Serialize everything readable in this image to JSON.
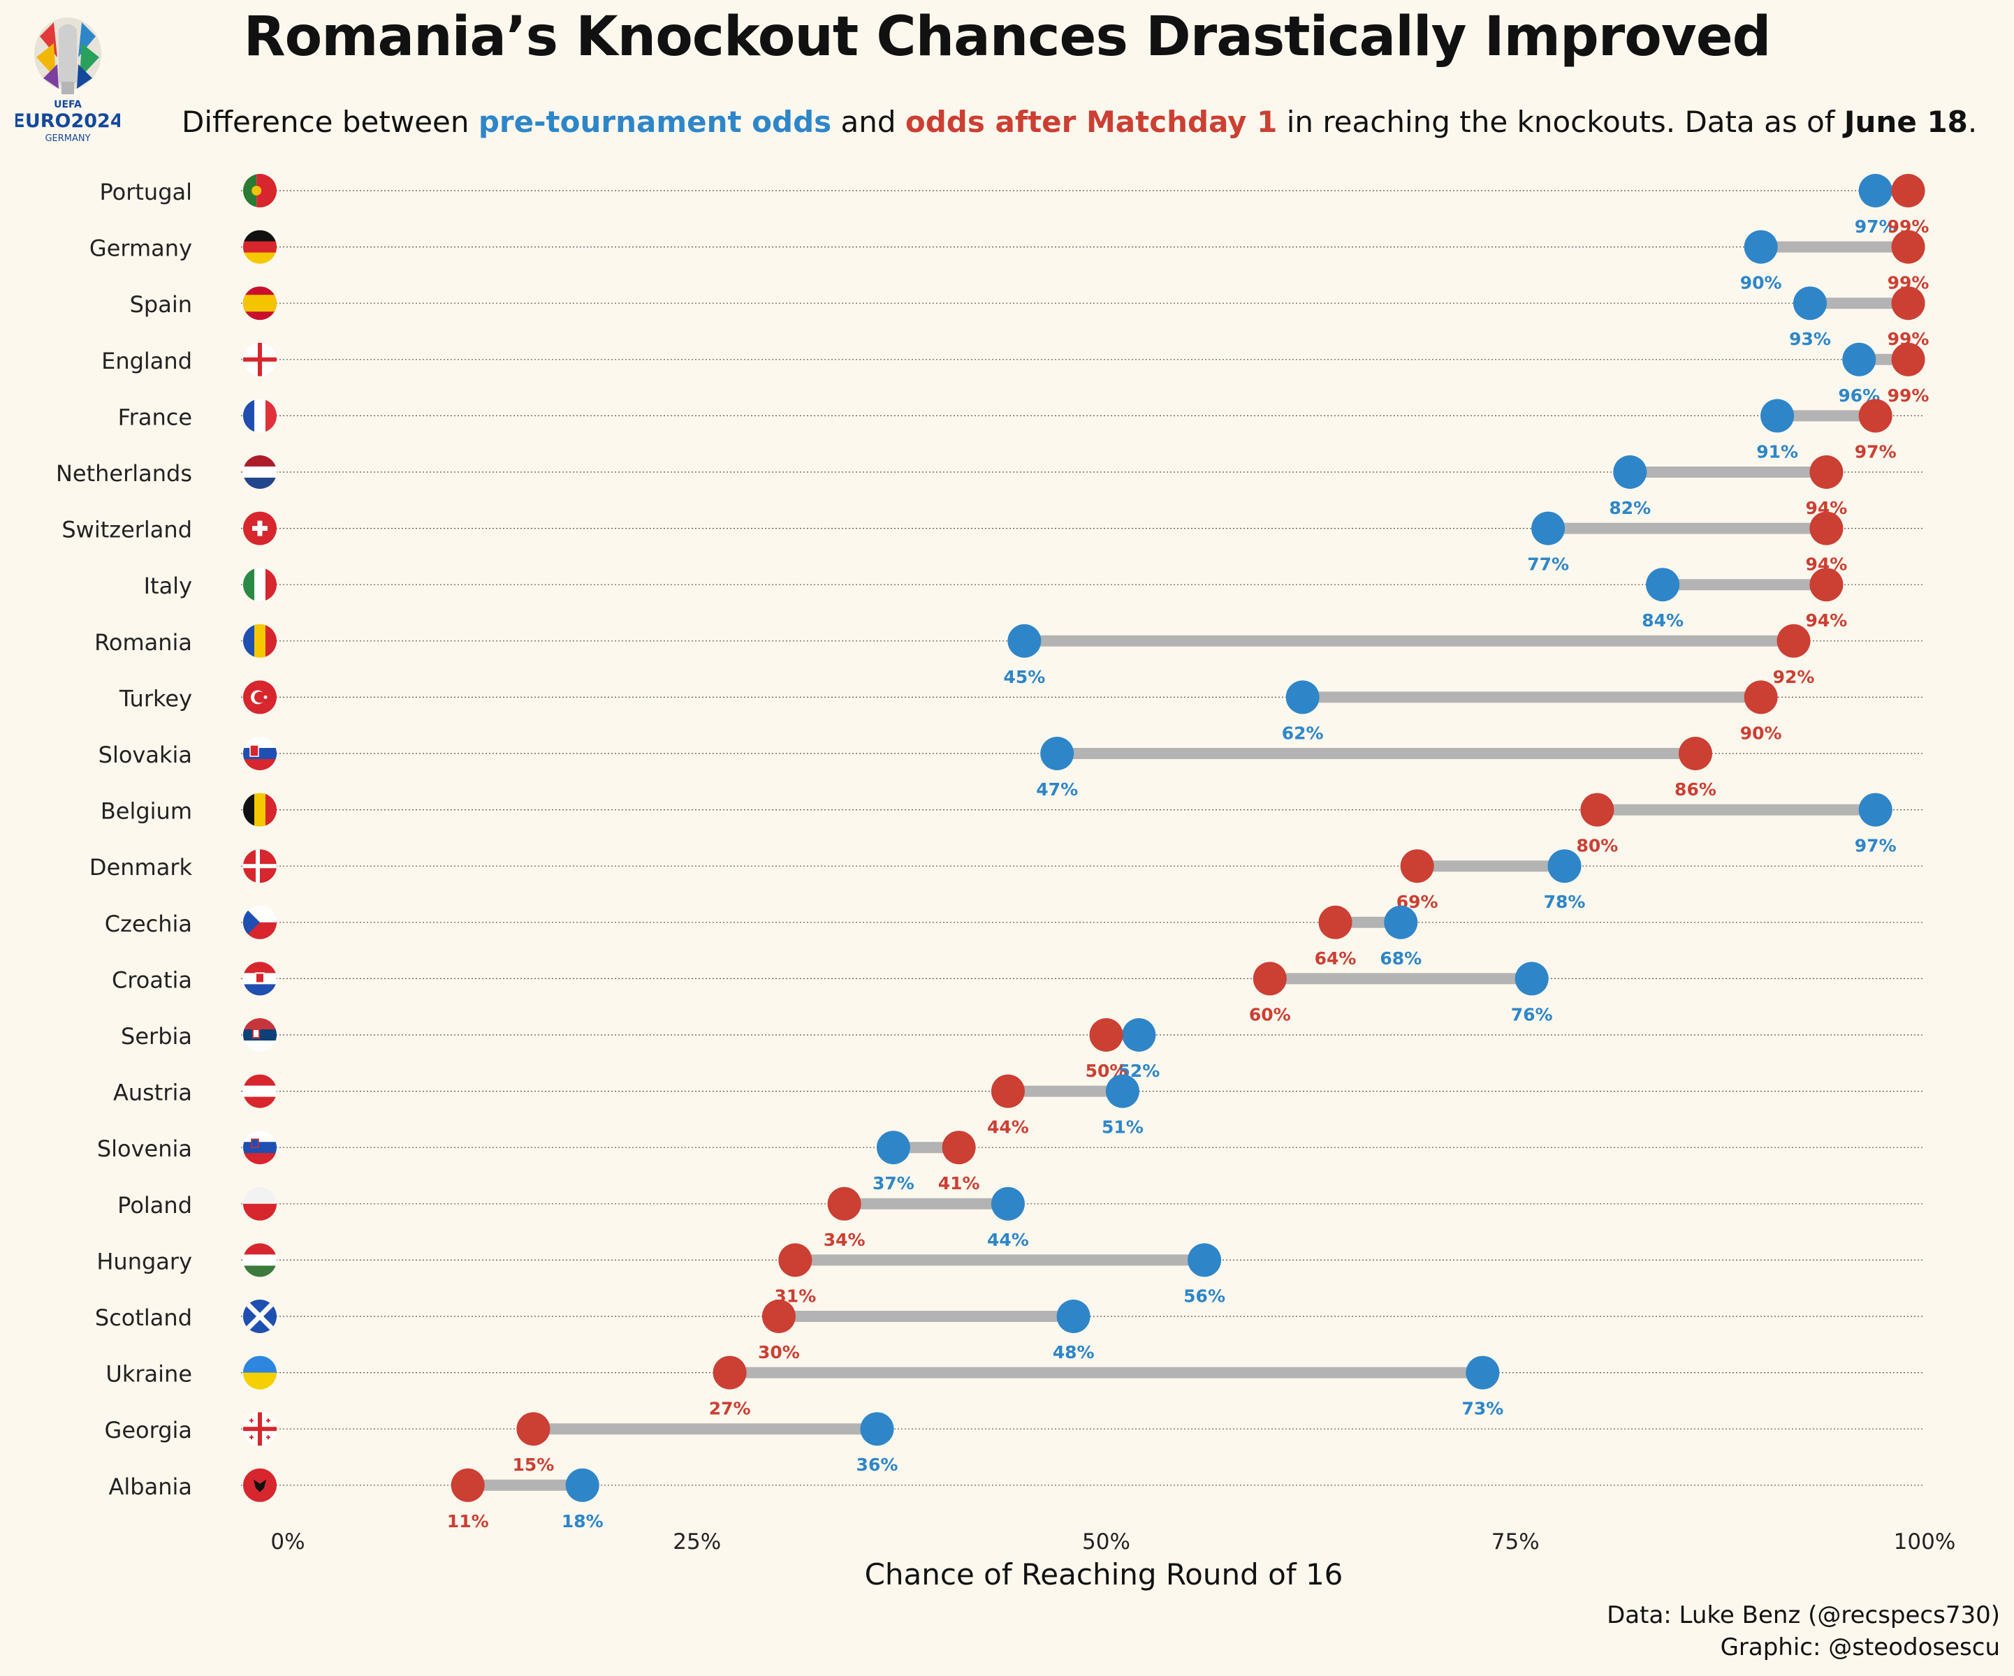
{
  "header": {
    "title": "Romania’s Knockout Chances Drastically Improved",
    "subtitle_lead": "Difference between ",
    "subtitle_pre": "pre-tournament odds",
    "subtitle_and": " and ",
    "subtitle_post": "odds after Matchday 1",
    "subtitle_mid": " in reaching the knockouts. Data as of ",
    "subtitle_date": "June 18",
    "subtitle_end": "."
  },
  "logo": {
    "org": "UEFA",
    "name": "EURO2024",
    "host": "GERMANY"
  },
  "colors": {
    "pre": "#2e86c8",
    "post": "#cc3f33",
    "connector": "#b3b3b3",
    "background": "#fdf8ee"
  },
  "chart_data": {
    "type": "dumbbell",
    "xlabel": "Chance of Reaching Round of 16",
    "xlim": [
      0,
      100
    ],
    "x_ticks": [
      0,
      25,
      50,
      75,
      100
    ],
    "x_tick_labels": [
      "0%",
      "25%",
      "50%",
      "75%",
      "100%"
    ],
    "series": [
      {
        "name": "pre-tournament odds",
        "color": "#2e86c8"
      },
      {
        "name": "odds after Matchday 1",
        "color": "#cc3f33"
      }
    ],
    "rows": [
      {
        "country": "Portugal",
        "pre": 97,
        "post": 99,
        "flag": "portugal"
      },
      {
        "country": "Germany",
        "pre": 90,
        "post": 99,
        "flag": "germany"
      },
      {
        "country": "Spain",
        "pre": 93,
        "post": 99,
        "flag": "spain"
      },
      {
        "country": "England",
        "pre": 96,
        "post": 99,
        "flag": "england"
      },
      {
        "country": "France",
        "pre": 91,
        "post": 97,
        "flag": "france"
      },
      {
        "country": "Netherlands",
        "pre": 82,
        "post": 94,
        "flag": "netherlands"
      },
      {
        "country": "Switzerland",
        "pre": 77,
        "post": 94,
        "flag": "switzerland"
      },
      {
        "country": "Italy",
        "pre": 84,
        "post": 94,
        "flag": "italy"
      },
      {
        "country": "Romania",
        "pre": 45,
        "post": 92,
        "flag": "romania"
      },
      {
        "country": "Turkey",
        "pre": 62,
        "post": 90,
        "flag": "turkey"
      },
      {
        "country": "Slovakia",
        "pre": 47,
        "post": 86,
        "flag": "slovakia"
      },
      {
        "country": "Belgium",
        "pre": 97,
        "post": 80,
        "flag": "belgium"
      },
      {
        "country": "Denmark",
        "pre": 78,
        "post": 69,
        "flag": "denmark"
      },
      {
        "country": "Czechia",
        "pre": 68,
        "post": 64,
        "flag": "czechia"
      },
      {
        "country": "Croatia",
        "pre": 76,
        "post": 60,
        "flag": "croatia"
      },
      {
        "country": "Serbia",
        "pre": 52,
        "post": 50,
        "flag": "serbia"
      },
      {
        "country": "Austria",
        "pre": 51,
        "post": 44,
        "flag": "austria"
      },
      {
        "country": "Slovenia",
        "pre": 37,
        "post": 41,
        "flag": "slovenia"
      },
      {
        "country": "Poland",
        "pre": 44,
        "post": 34,
        "flag": "poland"
      },
      {
        "country": "Hungary",
        "pre": 56,
        "post": 31,
        "flag": "hungary"
      },
      {
        "country": "Scotland",
        "pre": 48,
        "post": 30,
        "flag": "scotland"
      },
      {
        "country": "Ukraine",
        "pre": 73,
        "post": 27,
        "flag": "ukraine"
      },
      {
        "country": "Georgia",
        "pre": 36,
        "post": 15,
        "flag": "georgia"
      },
      {
        "country": "Albania",
        "pre": 18,
        "post": 11,
        "flag": "albania"
      }
    ]
  },
  "credits": {
    "data": "Data: Luke Benz (@recspecs730)",
    "graphic": "Graphic: @steodosescu"
  }
}
